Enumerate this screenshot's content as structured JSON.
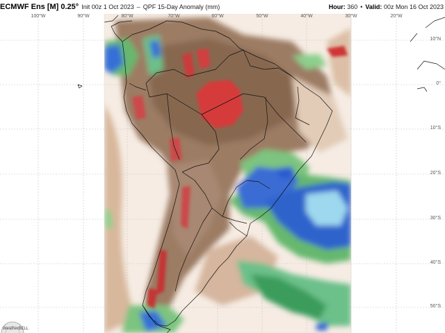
{
  "header": {
    "model": "ECMWF Ens [M] 0.25",
    "model_suffix": "°",
    "init": "Init 00z 1 Oct 2023",
    "product": "QPF 15-Day Anomaly (mm)",
    "hour_label": "Hour:",
    "hour_value": "360",
    "valid_label": "Valid:",
    "valid_value": "00z Mon 16 Oct 2023"
  },
  "longitudes": [
    "100°W",
    "90°W",
    "80°W",
    "70°W",
    "60°W",
    "50°W",
    "40°W",
    "30°W",
    "20°W"
  ],
  "latitudes": [
    "10°N",
    "0°",
    "10°S",
    "20°S",
    "30°S",
    "40°S",
    "50°S"
  ],
  "colors": {
    "deficit_strong": "#d63a3a",
    "deficit": "#8b6a52",
    "deficit_light": "#c8a68c",
    "surplus_light": "#a8d8a8",
    "surplus": "#3a9a4a",
    "surplus_strong": "#2a6ad0",
    "surplus_max": "#a8e4f4"
  },
  "logo": {
    "text": "WeatherBELL"
  }
}
